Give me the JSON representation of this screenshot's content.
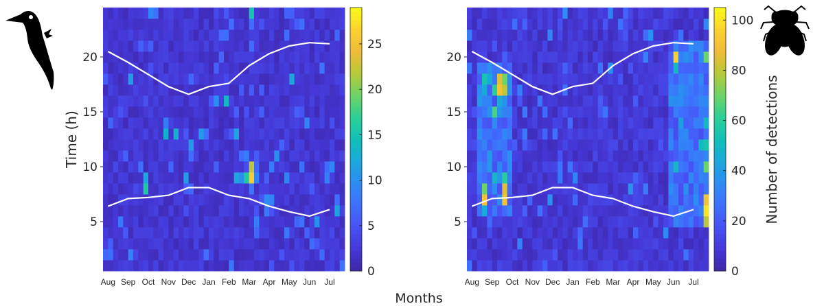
{
  "chart_data": [
    {
      "type": "heatmap",
      "panel": "left",
      "icon": "woodpecker-icon",
      "x_categories": [
        "Aug",
        "Sep",
        "Oct",
        "Nov",
        "Dec",
        "Jan",
        "Feb",
        "Mar",
        "Apr",
        "May",
        "Jun",
        "Jul"
      ],
      "columns_per_month": 4,
      "ylabel": "Time (h)",
      "ylim": [
        0.5,
        24.5
      ],
      "yticks": [
        5,
        10,
        15,
        20
      ],
      "colorbar": {
        "min": 0,
        "max": 29,
        "ticks": [
          0,
          5,
          10,
          15,
          20,
          25
        ],
        "label": ""
      },
      "colormap": [
        "#3e26a8",
        "#4538d7",
        "#4852f4",
        "#3f6ffe",
        "#2d8cf3",
        "#1aa8dc",
        "#10bfb9",
        "#2ccf95",
        "#6cd467",
        "#b6c937",
        "#f0bb3a",
        "#fcd22f",
        "#f9fb15"
      ],
      "background_level": 2,
      "hotspots": [
        {
          "month": "Mar",
          "w": 2,
          "hour": 9,
          "value": 26
        },
        {
          "month": "Mar",
          "w": 2,
          "hour": 10,
          "value": 22
        },
        {
          "month": "Mar",
          "w": 1,
          "hour": 9,
          "value": 16
        },
        {
          "month": "Feb",
          "w": 3,
          "hour": 9,
          "value": 12
        },
        {
          "month": "Oct",
          "w": 1,
          "hour": 8,
          "value": 16
        },
        {
          "month": "Oct",
          "w": 1,
          "hour": 9,
          "value": 12
        },
        {
          "month": "Nov",
          "w": 3,
          "hour": 13,
          "value": 13
        },
        {
          "month": "Nov",
          "w": 1,
          "hour": 13,
          "value": 13
        },
        {
          "month": "Feb",
          "w": 1,
          "hour": 16,
          "value": 14
        },
        {
          "month": "May",
          "w": 2,
          "hour": 18,
          "value": 12
        },
        {
          "month": "Sep",
          "w": 2,
          "hour": 18,
          "value": 11
        },
        {
          "month": "Feb",
          "w": 3,
          "hour": 13,
          "value": 12
        },
        {
          "month": "Jul",
          "w": 3,
          "hour": 6,
          "value": 12
        },
        {
          "month": "Jun",
          "w": 3,
          "hour": 5,
          "value": 10
        },
        {
          "month": "Apr",
          "w": 1,
          "hour": 7,
          "value": 10
        },
        {
          "month": "Apr",
          "w": 2,
          "hour": 7,
          "value": 9
        },
        {
          "month": "Mar",
          "w": 3,
          "hour": 9,
          "value": 9
        },
        {
          "month": "Feb",
          "w": 4,
          "hour": 9,
          "value": 10
        },
        {
          "month": "Jan",
          "w": 3,
          "hour": 16,
          "value": 10
        },
        {
          "month": "Mar",
          "w": 2,
          "hour": 24,
          "value": 15
        },
        {
          "month": "Dec",
          "w": 2,
          "hour": 12,
          "value": 11
        },
        {
          "month": "Dec",
          "w": 4,
          "hour": 13,
          "value": 11
        },
        {
          "month": "Apr",
          "w": 3,
          "hour": 11,
          "value": 10
        },
        {
          "month": "Jun",
          "w": 1,
          "hour": 14,
          "value": 9
        },
        {
          "month": "Dec",
          "w": 1,
          "hour": 9,
          "value": 11
        },
        {
          "month": "May",
          "w": 1,
          "hour": 9,
          "value": 9
        }
      ],
      "sunrise": [
        6.4,
        7.1,
        7.2,
        7.4,
        8.1,
        8.1,
        7.4,
        7.1,
        6.4,
        5.9,
        5.5,
        6.1
      ],
      "sunset": [
        20.5,
        19.5,
        18.4,
        17.3,
        16.6,
        17.3,
        17.6,
        19.2,
        20.3,
        21.0,
        21.3,
        21.2
      ]
    },
    {
      "type": "heatmap",
      "panel": "right",
      "icon": "fly-icon",
      "x_categories": [
        "Aug",
        "Sep",
        "Oct",
        "Nov",
        "Dec",
        "Jan",
        "Feb",
        "Mar",
        "Apr",
        "May",
        "Jun",
        "Jul"
      ],
      "columns_per_month": 4,
      "ylim": [
        0.5,
        24.5
      ],
      "yticks": [
        5,
        10,
        15,
        20
      ],
      "colorbar": {
        "min": 0,
        "max": 105,
        "ticks": [
          0,
          20,
          40,
          60,
          80,
          100
        ],
        "label": "Number of detections"
      },
      "colormap": [
        "#3e26a8",
        "#4538d7",
        "#4852f4",
        "#3f6ffe",
        "#2d8cf3",
        "#1aa8dc",
        "#10bfb9",
        "#2ccf95",
        "#6cd467",
        "#b6c937",
        "#f0bb3a",
        "#fcd22f",
        "#f9fb15"
      ],
      "background_level": 8,
      "hotspots": [
        {
          "month": "Aug",
          "w": 4,
          "hour": 7,
          "value": 90
        },
        {
          "month": "Aug",
          "w": 4,
          "hour": 8,
          "value": 70
        },
        {
          "month": "Aug",
          "w": 4,
          "hour": 6,
          "value": 45
        },
        {
          "month": "Sep",
          "w": 4,
          "hour": 7,
          "value": 90
        },
        {
          "month": "Sep",
          "w": 4,
          "hour": 8,
          "value": 85
        },
        {
          "month": "Sep",
          "w": 4,
          "hour": 9,
          "value": 60
        },
        {
          "month": "Sep",
          "w": 3,
          "hour": 17,
          "value": 90
        },
        {
          "month": "Sep",
          "w": 3,
          "hour": 18,
          "value": 85
        },
        {
          "month": "Sep",
          "w": 4,
          "hour": 17,
          "value": 80
        },
        {
          "month": "Sep",
          "w": 4,
          "hour": 18,
          "value": 70
        },
        {
          "month": "Sep",
          "w": 2,
          "hour": 17,
          "value": 60
        },
        {
          "month": "Sep",
          "w": 2,
          "hour": 15,
          "value": 65
        },
        {
          "month": "Sep",
          "w": 2,
          "hour": 9,
          "value": 50
        },
        {
          "month": "Aug",
          "w": 4,
          "hour": 18,
          "value": 55
        },
        {
          "month": "Aug",
          "w": 4,
          "hour": 17,
          "value": 45
        },
        {
          "month": "Sep",
          "w": 1,
          "hour": 18,
          "value": 45
        },
        {
          "month": "Sep",
          "w": 3,
          "hour": 16,
          "value": 45
        },
        {
          "month": "Jun",
          "w": 2,
          "hour": 20,
          "value": 95
        },
        {
          "month": "Jun",
          "w": 2,
          "hour": 19,
          "value": 50
        },
        {
          "month": "Jun",
          "w": 2,
          "hour": 10,
          "value": 50
        },
        {
          "month": "Jul",
          "w": 4,
          "hour": 6,
          "value": 100
        },
        {
          "month": "Jul",
          "w": 4,
          "hour": 7,
          "value": 90
        },
        {
          "month": "Jul",
          "w": 4,
          "hour": 5,
          "value": 80
        },
        {
          "month": "Jul",
          "w": 4,
          "hour": 20,
          "value": 70
        },
        {
          "month": "Jul",
          "w": 4,
          "hour": 10,
          "value": 70
        },
        {
          "month": "Jul",
          "w": 4,
          "hour": 12,
          "value": 55
        },
        {
          "month": "Jul",
          "w": 3,
          "hour": 12,
          "value": 50
        },
        {
          "month": "Jul",
          "w": 4,
          "hour": 14,
          "value": 50
        },
        {
          "month": "Jun",
          "w": 3,
          "hour": 14,
          "value": 40
        },
        {
          "month": "Jul",
          "w": 1,
          "hour": 9,
          "value": 35
        }
      ],
      "active_zones": [
        {
          "from_month": "Aug",
          "from_w": 3,
          "to_month": "Oct",
          "to_w": 1,
          "hour_from": 6,
          "hour_to": 19,
          "level": 30
        },
        {
          "from_month": "Jun",
          "from_w": 1,
          "to_month": "Jul",
          "to_w": 4,
          "hour_from": 5,
          "hour_to": 21,
          "level": 28
        }
      ],
      "sunrise": [
        6.4,
        7.1,
        7.2,
        7.4,
        8.1,
        8.1,
        7.4,
        7.1,
        6.4,
        5.9,
        5.5,
        6.1
      ],
      "sunset": [
        20.5,
        19.5,
        18.4,
        17.3,
        16.6,
        17.3,
        17.6,
        19.2,
        20.3,
        21.0,
        21.3,
        21.2
      ]
    }
  ],
  "shared_xlabel": "Months",
  "colors": {
    "line": "#ffffff",
    "text": "#262626",
    "axis": "#262626"
  }
}
